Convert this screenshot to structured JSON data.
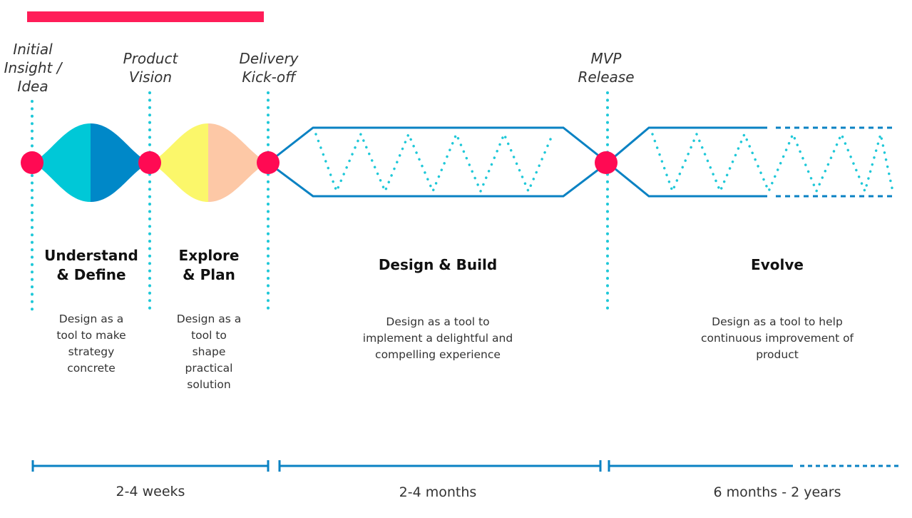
{
  "milestones": [
    {
      "label": "Initial\nInsight /\nIdea"
    },
    {
      "label": "Product\nVision"
    },
    {
      "label": "Delivery\nKick-off"
    },
    {
      "label": "MVP\nRelease"
    }
  ],
  "phases": [
    {
      "title": "Understand\n& Define",
      "description": "Design as a tool to make strategy concrete"
    },
    {
      "title": "Explore\n& Plan",
      "description": "Design as a tool to shape practical solution"
    },
    {
      "title": "Design & Build",
      "description": "Design as a tool to implement a delightful and compelling experience"
    },
    {
      "title": "Evolve",
      "description": "Design as a tool to help continuous improvement of product"
    }
  ],
  "durations": [
    {
      "label": "2-4 weeks"
    },
    {
      "label": "2-4 months"
    },
    {
      "label": "6 months - 2 years"
    }
  ],
  "colors": {
    "accent": "#ff1d58",
    "milestone_dot": "#ff0a53",
    "dotted_line": "#1fc8d8",
    "line_blue": "#0a82c3",
    "understand_left": "#00c8d7",
    "understand_right": "#0088c8",
    "explore_left": "#fbf76a",
    "explore_right": "#fdc8a6"
  }
}
